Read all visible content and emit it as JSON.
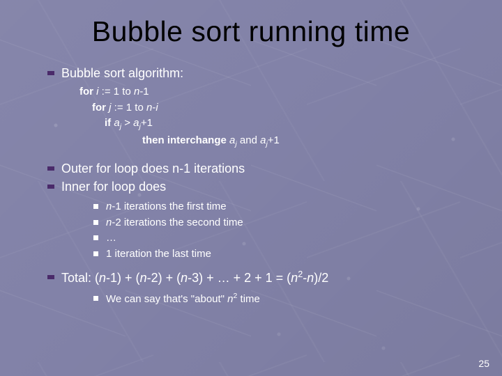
{
  "colors": {
    "background": "#8282a8",
    "title_text": "#000000",
    "body_text": "#ffffff",
    "bullet_lvl1": "#4a2a6a",
    "bullet_lvl2": "#ffffff"
  },
  "typography": {
    "title_fontsize_pt": 41,
    "body_fontsize_pt": 18,
    "algo_fontsize_pt": 15,
    "sub_fontsize_pt": 15,
    "pagenum_fontsize_pt": 14,
    "font_family": "Arial"
  },
  "title": "Bubble sort running time",
  "bullets": {
    "b1": "Bubble sort algorithm:",
    "b2": "Outer for loop does n-1 iterations",
    "b3": "Inner for loop does",
    "b4_pre": "Total: (",
    "b4_mid1": "-1) + (",
    "b4_mid2": "-2) + (",
    "b4_mid3": "-3) + … + 2 + 1 = (",
    "b4_sup": "2",
    "b4_post": "-",
    "b4_end": ")/2"
  },
  "algo": {
    "l1_for": "for ",
    "l1_var": "i",
    "l1_rest": " := 1 to ",
    "l1_n": "n",
    "l1_end": "-1",
    "l2_for": "for ",
    "l2_var": "j",
    "l2_rest": " := 1 to ",
    "l2_n": "n",
    "l2_end": "-",
    "l2_i": "i",
    "l3_if": "if ",
    "l3_a1": "a",
    "l3_sub1": "j",
    "l3_gt": " > ",
    "l3_a2": "a",
    "l3_sub2": "j",
    "l3_plus": "+1",
    "l4_then": "then interchange ",
    "l4_a1": "a",
    "l4_sub1": "j",
    "l4_and": " and ",
    "l4_a2": "a",
    "l4_sub2": "j",
    "l4_plus": "+1"
  },
  "sub": {
    "s1_n": "n",
    "s1_rest": "-1 iterations the first time",
    "s2_n": "n",
    "s2_rest": "-2 iterations the second time",
    "s3": "…",
    "s4": "1 iteration the last time",
    "s5_pre": "We can say that's \"about\" ",
    "s5_n": "n",
    "s5_sup": "2",
    "s5_post": " time"
  },
  "n_ital": "n",
  "page_number": "25"
}
